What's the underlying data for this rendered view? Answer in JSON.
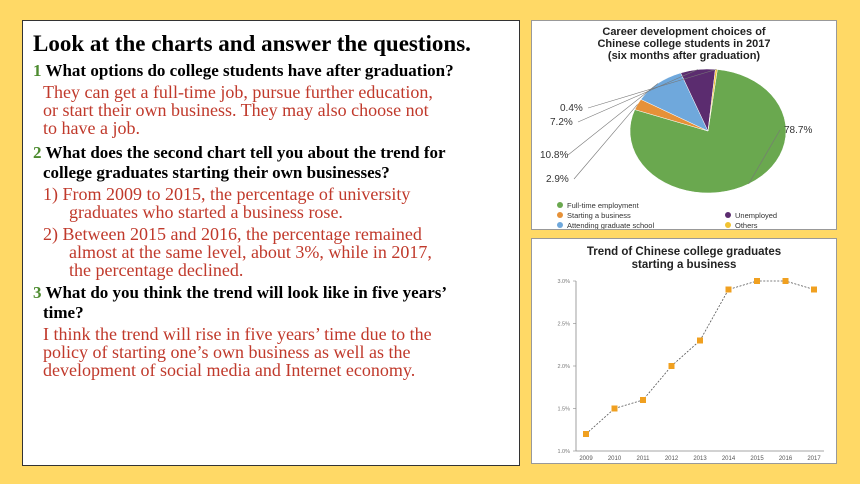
{
  "heading": "Look at the charts and answer the questions.",
  "questions": [
    {
      "num": "1",
      "text": "What options do college students have after graduation?"
    },
    {
      "num": "2",
      "text_l1": "What does the second chart tell you about the trend for",
      "text_l2": "college graduates starting their own businesses?"
    },
    {
      "num": "3",
      "text_l1": "What do you think the trend will look like in five years’",
      "text_l2": "time?"
    }
  ],
  "answers": {
    "a1": [
      "They can get a full-time job, pursue further education,",
      "or start their own business. They may also choose not",
      "to have a job."
    ],
    "a2_1": [
      "1) From 2009 to 2015, the percentage of university",
      "graduates who started a business rose."
    ],
    "a2_2": [
      "2) Between 2015 and 2016, the percentage remained",
      "almost at the same level, about 3%, while in 2017,",
      "the percentage declined."
    ],
    "a3": [
      "I think the trend will rise in five years’ time due to the",
      "policy of starting one’s own business as well as the",
      "development of social media and Internet economy."
    ]
  },
  "chart_data": [
    {
      "type": "pie",
      "title": [
        "Career development choices of",
        "Chinese college students in 2017",
        "(six months after graduation)"
      ],
      "categories": [
        "Full-time employment",
        "Starting a business",
        "Attending graduate school",
        "Unemployed",
        "Others"
      ],
      "values": [
        78.7,
        2.9,
        10.8,
        7.2,
        0.4
      ],
      "labels": [
        "78.7%",
        "2.9%",
        "10.8%",
        "7.2%",
        "0.4%"
      ],
      "colors": [
        "#6aa84f",
        "#e69138",
        "#6fa8dc",
        "#5b2c6f",
        "#f1c232"
      ],
      "legend": "bottom"
    },
    {
      "type": "line",
      "title": [
        "Trend of Chinese college graduates",
        "starting a business"
      ],
      "x": [
        "2009",
        "2010",
        "2011",
        "2012",
        "2013",
        "2014",
        "2015",
        "2016",
        "2017"
      ],
      "y": [
        1.2,
        1.5,
        1.6,
        2.0,
        2.3,
        2.9,
        3.0,
        3.0,
        2.9
      ],
      "ytick_labels": [
        "1.0%",
        "1.5%",
        "2.0%",
        "2.5%",
        "3.0%"
      ],
      "ylim": [
        1.0,
        3.0
      ],
      "colors": {
        "marker": "#f0a020",
        "line": "#555555"
      }
    }
  ]
}
